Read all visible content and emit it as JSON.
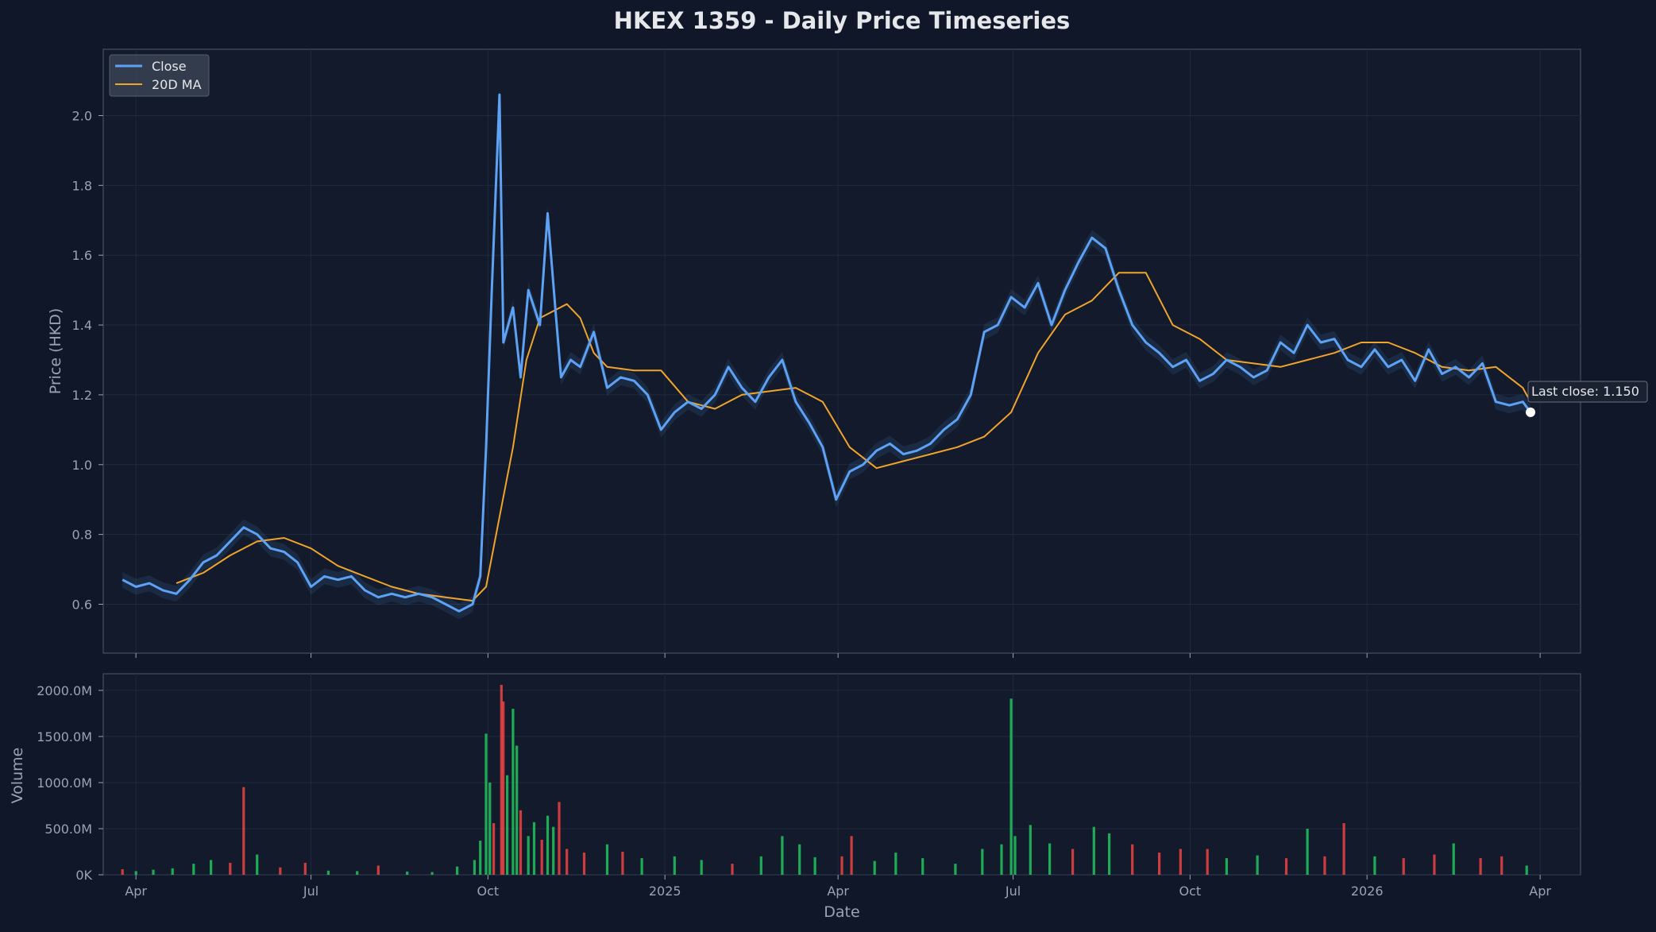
{
  "chart_data": {
    "type": "line",
    "title": "HKEX 1359 - Daily Price Timeseries",
    "xlabel": "Date",
    "x_ticks": [
      "Apr",
      "Jul",
      "Oct",
      "2025",
      "Apr",
      "Jul",
      "Oct",
      "2026",
      "Apr"
    ],
    "x_tick_dates": [
      "2024-04-01",
      "2024-07-01",
      "2024-10-01",
      "2025-01-01",
      "2025-04-01",
      "2025-07-01",
      "2025-10-01",
      "2026-01-01",
      "2026-04-01"
    ],
    "price_panel": {
      "ylabel": "Price (HKD)",
      "ylim": [
        0.46,
        2.19
      ],
      "yticks": [
        "0.6",
        "0.8",
        "1.0",
        "1.2",
        "1.4",
        "1.6",
        "1.8",
        "2.0"
      ],
      "legend": {
        "placement": "top-left",
        "entries": [
          "Close",
          "20D MA"
        ]
      },
      "series": [
        {
          "name": "Close",
          "color": "#5ea2f5",
          "x": [
            "2024-03-25",
            "2024-04-01",
            "2024-04-08",
            "2024-04-15",
            "2024-04-22",
            "2024-04-29",
            "2024-05-06",
            "2024-05-13",
            "2024-05-20",
            "2024-05-27",
            "2024-06-03",
            "2024-06-10",
            "2024-06-17",
            "2024-06-24",
            "2024-07-01",
            "2024-07-08",
            "2024-07-15",
            "2024-07-22",
            "2024-07-29",
            "2024-08-05",
            "2024-08-12",
            "2024-08-19",
            "2024-08-26",
            "2024-09-02",
            "2024-09-09",
            "2024-09-16",
            "2024-09-23",
            "2024-09-27",
            "2024-09-30",
            "2024-10-03",
            "2024-10-07",
            "2024-10-09",
            "2024-10-14",
            "2024-10-18",
            "2024-10-22",
            "2024-10-28",
            "2024-11-01",
            "2024-11-05",
            "2024-11-08",
            "2024-11-13",
            "2024-11-18",
            "2024-11-25",
            "2024-12-02",
            "2024-12-09",
            "2024-12-16",
            "2024-12-23",
            "2024-12-30",
            "2025-01-06",
            "2025-01-13",
            "2025-01-20",
            "2025-01-27",
            "2025-02-03",
            "2025-02-10",
            "2025-02-17",
            "2025-02-24",
            "2025-03-03",
            "2025-03-10",
            "2025-03-17",
            "2025-03-24",
            "2025-03-31",
            "2025-04-07",
            "2025-04-14",
            "2025-04-21",
            "2025-04-28",
            "2025-05-05",
            "2025-05-12",
            "2025-05-19",
            "2025-05-26",
            "2025-06-02",
            "2025-06-09",
            "2025-06-16",
            "2025-06-23",
            "2025-06-30",
            "2025-07-07",
            "2025-07-14",
            "2025-07-21",
            "2025-07-28",
            "2025-08-04",
            "2025-08-11",
            "2025-08-18",
            "2025-08-25",
            "2025-09-01",
            "2025-09-08",
            "2025-09-15",
            "2025-09-22",
            "2025-09-29",
            "2025-10-06",
            "2025-10-13",
            "2025-10-20",
            "2025-10-27",
            "2025-11-03",
            "2025-11-10",
            "2025-11-17",
            "2025-11-24",
            "2025-12-01",
            "2025-12-08",
            "2025-12-15",
            "2025-12-22",
            "2025-12-29",
            "2026-01-05",
            "2026-01-12",
            "2026-01-19",
            "2026-01-26",
            "2026-02-02",
            "2026-02-09",
            "2026-02-16",
            "2026-02-23",
            "2026-03-02",
            "2026-03-09",
            "2026-03-16",
            "2026-03-23",
            "2026-03-27"
          ],
          "values": [
            0.67,
            0.65,
            0.66,
            0.64,
            0.63,
            0.67,
            0.72,
            0.74,
            0.78,
            0.82,
            0.8,
            0.76,
            0.75,
            0.72,
            0.65,
            0.68,
            0.67,
            0.68,
            0.64,
            0.62,
            0.63,
            0.62,
            0.63,
            0.62,
            0.6,
            0.58,
            0.6,
            0.68,
            1.05,
            1.5,
            2.06,
            1.35,
            1.45,
            1.25,
            1.5,
            1.4,
            1.72,
            1.45,
            1.25,
            1.3,
            1.28,
            1.38,
            1.22,
            1.25,
            1.24,
            1.2,
            1.1,
            1.15,
            1.18,
            1.16,
            1.2,
            1.28,
            1.22,
            1.18,
            1.25,
            1.3,
            1.18,
            1.12,
            1.05,
            0.9,
            0.98,
            1.0,
            1.04,
            1.06,
            1.03,
            1.04,
            1.06,
            1.1,
            1.13,
            1.2,
            1.38,
            1.4,
            1.48,
            1.45,
            1.52,
            1.4,
            1.5,
            1.58,
            1.65,
            1.62,
            1.5,
            1.4,
            1.35,
            1.32,
            1.28,
            1.3,
            1.24,
            1.26,
            1.3,
            1.28,
            1.25,
            1.27,
            1.35,
            1.32,
            1.4,
            1.35,
            1.36,
            1.3,
            1.28,
            1.33,
            1.28,
            1.3,
            1.24,
            1.33,
            1.26,
            1.28,
            1.25,
            1.29,
            1.18,
            1.17,
            1.18,
            1.15
          ]
        },
        {
          "name": "20D MA",
          "color": "#f0a42c",
          "x": [
            "2024-04-22",
            "2024-05-06",
            "2024-05-20",
            "2024-06-03",
            "2024-06-17",
            "2024-07-01",
            "2024-07-15",
            "2024-07-29",
            "2024-08-12",
            "2024-08-26",
            "2024-09-09",
            "2024-09-23",
            "2024-09-30",
            "2024-10-07",
            "2024-10-14",
            "2024-10-21",
            "2024-10-28",
            "2024-11-04",
            "2024-11-11",
            "2024-11-18",
            "2024-11-25",
            "2024-12-02",
            "2024-12-16",
            "2024-12-30",
            "2025-01-13",
            "2025-01-27",
            "2025-02-10",
            "2025-02-24",
            "2025-03-10",
            "2025-03-24",
            "2025-04-07",
            "2025-04-21",
            "2025-05-05",
            "2025-05-19",
            "2025-06-02",
            "2025-06-16",
            "2025-06-30",
            "2025-07-14",
            "2025-07-28",
            "2025-08-11",
            "2025-08-25",
            "2025-09-08",
            "2025-09-22",
            "2025-10-06",
            "2025-10-20",
            "2025-11-03",
            "2025-11-17",
            "2025-12-01",
            "2025-12-15",
            "2025-12-29",
            "2026-01-12",
            "2026-01-26",
            "2026-02-09",
            "2026-02-23",
            "2026-03-09",
            "2026-03-23",
            "2026-03-27"
          ],
          "values": [
            0.66,
            0.69,
            0.74,
            0.78,
            0.79,
            0.76,
            0.71,
            0.68,
            0.65,
            0.63,
            0.62,
            0.61,
            0.65,
            0.85,
            1.05,
            1.3,
            1.42,
            1.44,
            1.46,
            1.42,
            1.32,
            1.28,
            1.27,
            1.27,
            1.18,
            1.16,
            1.2,
            1.21,
            1.22,
            1.18,
            1.05,
            0.99,
            1.01,
            1.03,
            1.05,
            1.08,
            1.15,
            1.32,
            1.43,
            1.47,
            1.55,
            1.55,
            1.4,
            1.36,
            1.3,
            1.29,
            1.28,
            1.3,
            1.32,
            1.35,
            1.35,
            1.32,
            1.28,
            1.27,
            1.28,
            1.22,
            1.18
          ]
        }
      ],
      "annotation": "Last close: 1.150",
      "last_close": {
        "x": "2026-03-27",
        "y": 1.15
      }
    },
    "volume_panel": {
      "ylabel": "Volume",
      "ylim": [
        0,
        2180
      ],
      "yticks": [
        "0K",
        "500.0M",
        "1000.0M",
        "1500.0M",
        "2000.0M"
      ],
      "up_color": "#22c55e",
      "down_color": "#ef4444",
      "bars": [
        {
          "x": "2024-03-25",
          "v": 60,
          "d": "down"
        },
        {
          "x": "2024-04-01",
          "v": 40,
          "d": "up"
        },
        {
          "x": "2024-04-10",
          "v": 55,
          "d": "up"
        },
        {
          "x": "2024-04-20",
          "v": 70,
          "d": "up"
        },
        {
          "x": "2024-05-01",
          "v": 120,
          "d": "up"
        },
        {
          "x": "2024-05-10",
          "v": 160,
          "d": "up"
        },
        {
          "x": "2024-05-20",
          "v": 130,
          "d": "down"
        },
        {
          "x": "2024-05-27",
          "v": 950,
          "d": "down"
        },
        {
          "x": "2024-06-03",
          "v": 220,
          "d": "up"
        },
        {
          "x": "2024-06-15",
          "v": 80,
          "d": "down"
        },
        {
          "x": "2024-06-28",
          "v": 130,
          "d": "down"
        },
        {
          "x": "2024-07-10",
          "v": 45,
          "d": "up"
        },
        {
          "x": "2024-07-25",
          "v": 40,
          "d": "up"
        },
        {
          "x": "2024-08-05",
          "v": 100,
          "d": "down"
        },
        {
          "x": "2024-08-20",
          "v": 35,
          "d": "up"
        },
        {
          "x": "2024-09-02",
          "v": 30,
          "d": "up"
        },
        {
          "x": "2024-09-15",
          "v": 90,
          "d": "up"
        },
        {
          "x": "2024-09-24",
          "v": 160,
          "d": "up"
        },
        {
          "x": "2024-09-27",
          "v": 370,
          "d": "up"
        },
        {
          "x": "2024-09-30",
          "v": 1530,
          "d": "up"
        },
        {
          "x": "2024-10-02",
          "v": 1000,
          "d": "up"
        },
        {
          "x": "2024-10-04",
          "v": 560,
          "d": "down"
        },
        {
          "x": "2024-10-08",
          "v": 2060,
          "d": "down"
        },
        {
          "x": "2024-10-09",
          "v": 1880,
          "d": "down"
        },
        {
          "x": "2024-10-11",
          "v": 1080,
          "d": "up"
        },
        {
          "x": "2024-10-14",
          "v": 1800,
          "d": "up"
        },
        {
          "x": "2024-10-16",
          "v": 1400,
          "d": "up"
        },
        {
          "x": "2024-10-18",
          "v": 700,
          "d": "down"
        },
        {
          "x": "2024-10-22",
          "v": 420,
          "d": "up"
        },
        {
          "x": "2024-10-25",
          "v": 570,
          "d": "up"
        },
        {
          "x": "2024-10-29",
          "v": 380,
          "d": "down"
        },
        {
          "x": "2024-11-01",
          "v": 640,
          "d": "up"
        },
        {
          "x": "2024-11-04",
          "v": 520,
          "d": "up"
        },
        {
          "x": "2024-11-07",
          "v": 790,
          "d": "down"
        },
        {
          "x": "2024-11-11",
          "v": 280,
          "d": "down"
        },
        {
          "x": "2024-11-20",
          "v": 240,
          "d": "down"
        },
        {
          "x": "2024-12-02",
          "v": 330,
          "d": "up"
        },
        {
          "x": "2024-12-10",
          "v": 250,
          "d": "down"
        },
        {
          "x": "2024-12-20",
          "v": 180,
          "d": "up"
        },
        {
          "x": "2025-01-06",
          "v": 200,
          "d": "up"
        },
        {
          "x": "2025-01-20",
          "v": 160,
          "d": "up"
        },
        {
          "x": "2025-02-05",
          "v": 120,
          "d": "down"
        },
        {
          "x": "2025-02-20",
          "v": 200,
          "d": "up"
        },
        {
          "x": "2025-03-03",
          "v": 420,
          "d": "up"
        },
        {
          "x": "2025-03-12",
          "v": 330,
          "d": "up"
        },
        {
          "x": "2025-03-20",
          "v": 190,
          "d": "up"
        },
        {
          "x": "2025-04-03",
          "v": 200,
          "d": "down"
        },
        {
          "x": "2025-04-08",
          "v": 420,
          "d": "down"
        },
        {
          "x": "2025-04-20",
          "v": 150,
          "d": "up"
        },
        {
          "x": "2025-05-01",
          "v": 240,
          "d": "up"
        },
        {
          "x": "2025-05-15",
          "v": 180,
          "d": "up"
        },
        {
          "x": "2025-06-01",
          "v": 120,
          "d": "up"
        },
        {
          "x": "2025-06-15",
          "v": 280,
          "d": "up"
        },
        {
          "x": "2025-06-25",
          "v": 330,
          "d": "up"
        },
        {
          "x": "2025-06-30",
          "v": 1910,
          "d": "up"
        },
        {
          "x": "2025-07-02",
          "v": 420,
          "d": "up"
        },
        {
          "x": "2025-07-10",
          "v": 540,
          "d": "up"
        },
        {
          "x": "2025-07-20",
          "v": 340,
          "d": "up"
        },
        {
          "x": "2025-08-01",
          "v": 280,
          "d": "down"
        },
        {
          "x": "2025-08-12",
          "v": 520,
          "d": "up"
        },
        {
          "x": "2025-08-20",
          "v": 450,
          "d": "up"
        },
        {
          "x": "2025-09-01",
          "v": 330,
          "d": "down"
        },
        {
          "x": "2025-09-15",
          "v": 240,
          "d": "down"
        },
        {
          "x": "2025-09-26",
          "v": 280,
          "d": "down"
        },
        {
          "x": "2025-10-10",
          "v": 280,
          "d": "down"
        },
        {
          "x": "2025-10-20",
          "v": 180,
          "d": "up"
        },
        {
          "x": "2025-11-05",
          "v": 210,
          "d": "up"
        },
        {
          "x": "2025-11-20",
          "v": 180,
          "d": "down"
        },
        {
          "x": "2025-12-01",
          "v": 500,
          "d": "up"
        },
        {
          "x": "2025-12-10",
          "v": 200,
          "d": "down"
        },
        {
          "x": "2025-12-20",
          "v": 560,
          "d": "down"
        },
        {
          "x": "2026-01-05",
          "v": 200,
          "d": "up"
        },
        {
          "x": "2026-01-20",
          "v": 180,
          "d": "down"
        },
        {
          "x": "2026-02-05",
          "v": 220,
          "d": "down"
        },
        {
          "x": "2026-02-15",
          "v": 340,
          "d": "up"
        },
        {
          "x": "2026-03-01",
          "v": 180,
          "d": "down"
        },
        {
          "x": "2026-03-12",
          "v": 200,
          "d": "down"
        },
        {
          "x": "2026-03-25",
          "v": 100,
          "d": "up"
        }
      ]
    }
  }
}
